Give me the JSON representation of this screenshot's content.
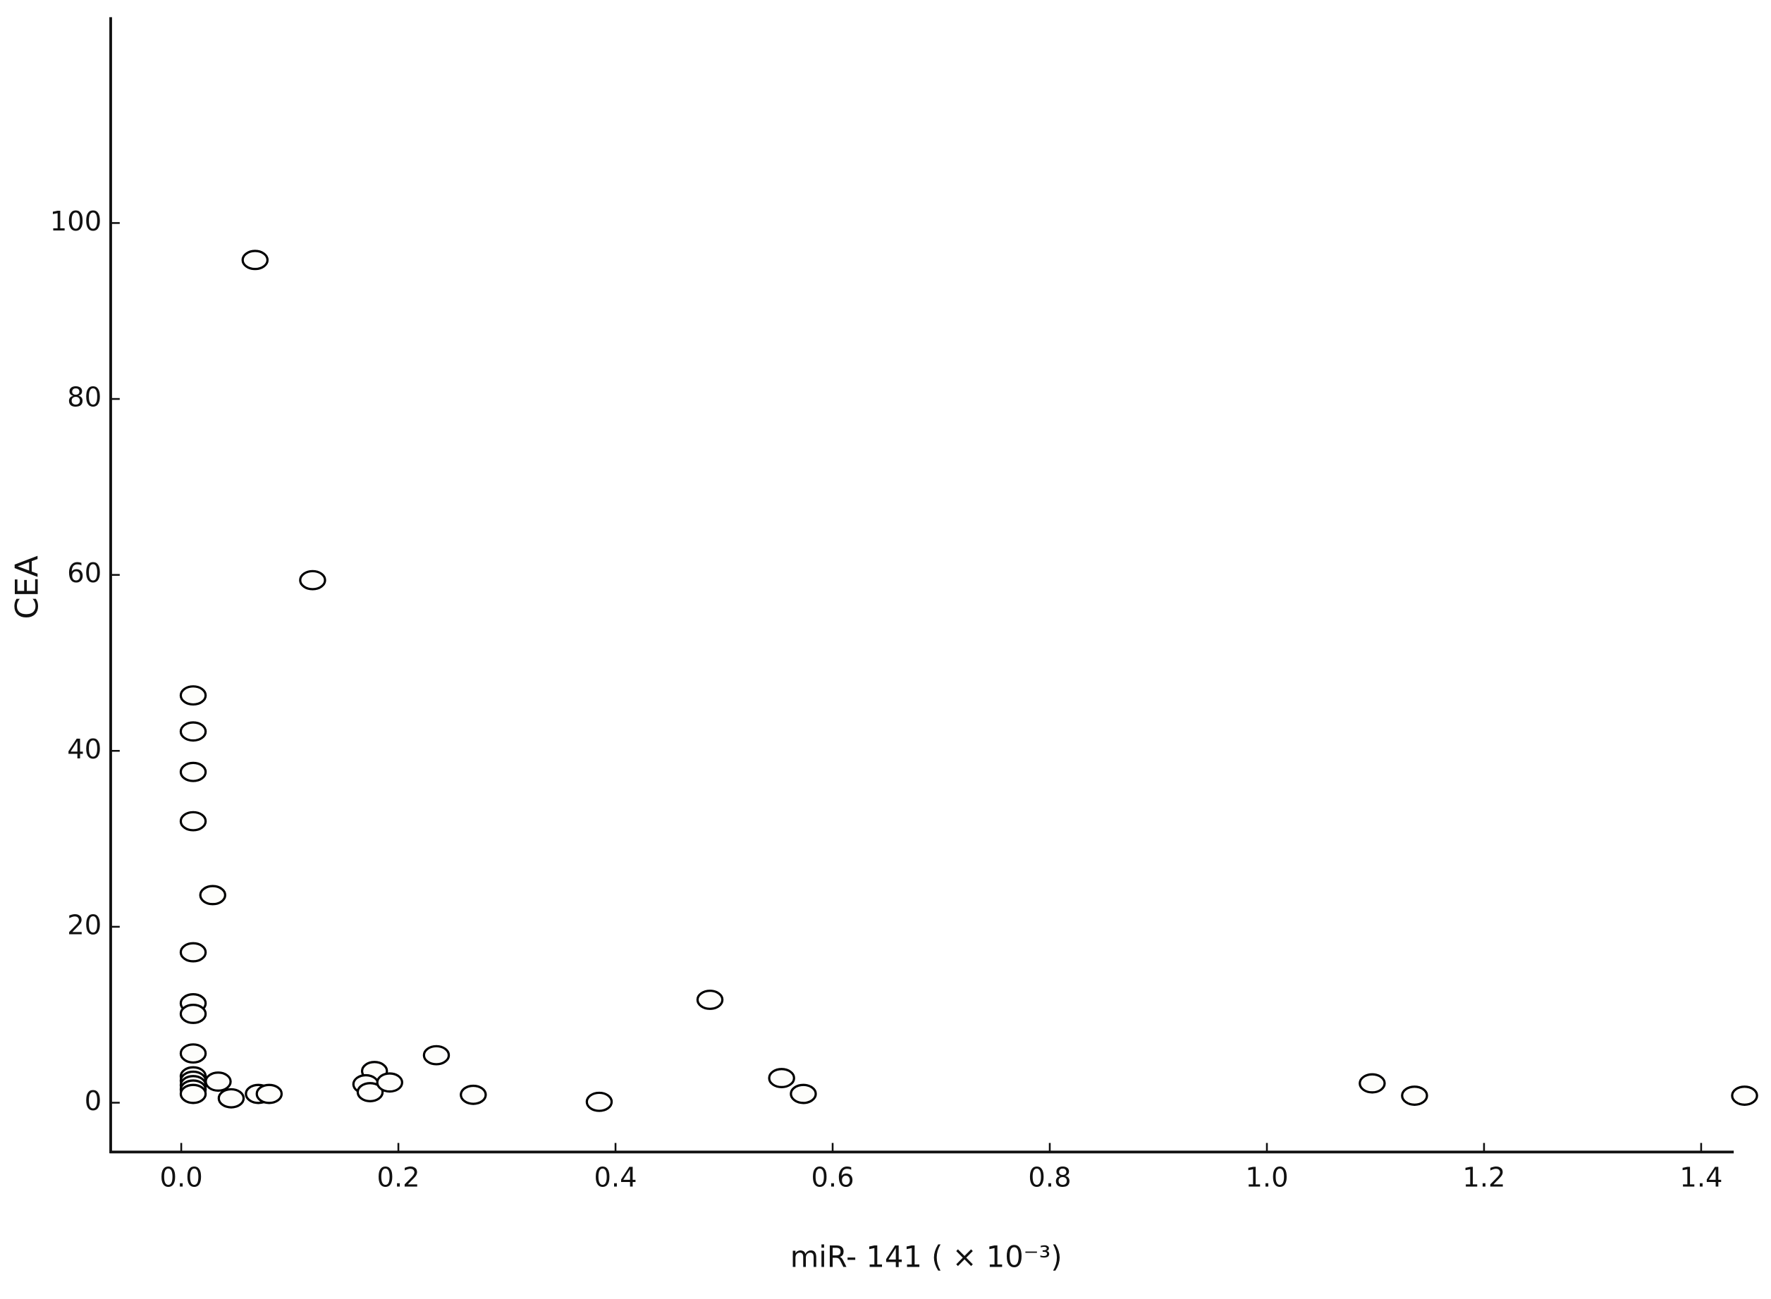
{
  "chart_data": {
    "type": "scatter",
    "x_label": "miR- 141 ( × 10⁻³)",
    "y_label": "CEA",
    "x": [
      0.068,
      0.121,
      0.011,
      0.011,
      0.011,
      0.011,
      0.029,
      0.011,
      0.011,
      0.011,
      0.011,
      0.011,
      0.011,
      0.011,
      0.011,
      0.011,
      0.034,
      0.046,
      0.071,
      0.081,
      0.178,
      0.17,
      0.174,
      0.192,
      0.235,
      0.269,
      0.385,
      0.487,
      0.553,
      0.573,
      1.097,
      1.136,
      1.44
    ],
    "values": [
      95.8,
      59.4,
      46.3,
      42.2,
      37.6,
      32.0,
      23.6,
      17.1,
      11.3,
      10.1,
      5.6,
      3.0,
      2.5,
      2.0,
      1.5,
      1.0,
      2.4,
      0.5,
      1.0,
      1.0,
      3.6,
      2.1,
      1.2,
      2.3,
      5.4,
      0.9,
      0.1,
      11.7,
      2.8,
      1.0,
      2.2,
      0.8,
      0.8
    ],
    "color": "#000000",
    "xlim": [
      -0.065,
      1.43
    ],
    "ylim": [
      -5.6,
      123.4
    ],
    "xticks": [
      {
        "value": 0,
        "label": "0.0"
      },
      0.2,
      0.4,
      0.6,
      0.8,
      {
        "value": 1,
        "label": "1.0"
      },
      1.2,
      1.4
    ],
    "yticks": [
      0,
      20,
      40,
      60,
      80,
      100
    ]
  }
}
